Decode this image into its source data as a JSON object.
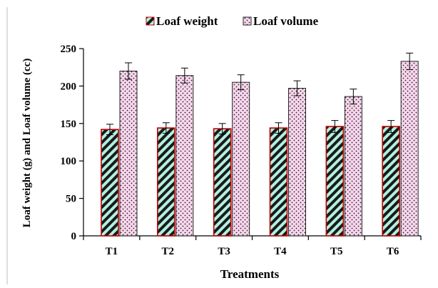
{
  "chart_data": {
    "type": "bar",
    "categories": [
      "T1",
      "T2",
      "T3",
      "T4",
      "T5",
      "T6"
    ],
    "series": [
      {
        "name": "Loaf weight",
        "values": [
          142,
          144,
          143,
          144,
          146,
          146
        ],
        "errors": [
          7,
          7,
          7,
          7,
          8,
          8
        ],
        "color": "#2e8b57",
        "pattern": "diagonal-stripes",
        "fill_base": "#b2f0e0",
        "stripe": "#1a1a1a",
        "edge": "#c00000"
      },
      {
        "name": "Loaf volume",
        "values": [
          220,
          214,
          205,
          197,
          186,
          233
        ],
        "errors": [
          11,
          10,
          10,
          10,
          10,
          11
        ],
        "color": "#f5cfe8",
        "pattern": "dots",
        "fill_base": "#f9d6ee",
        "dot": "#222222",
        "edge": "#222222"
      }
    ],
    "xlabel": "Treatments",
    "ylabel": "Loaf weight (g) and Loaf volume (cc)",
    "ylim": [
      0,
      250
    ],
    "yticks": [
      0,
      50,
      100,
      150,
      200,
      250
    ],
    "grid": false,
    "legend": "top-center"
  }
}
